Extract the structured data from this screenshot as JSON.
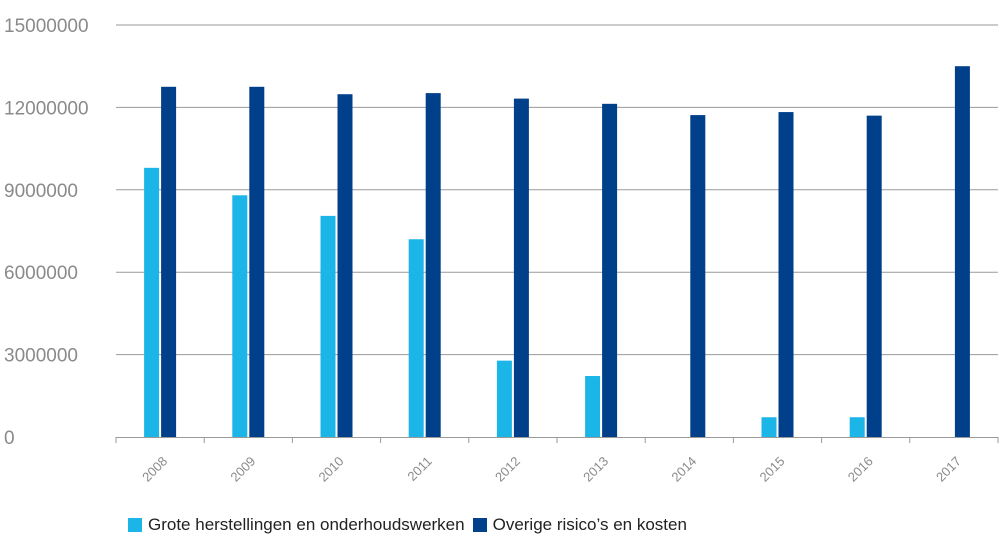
{
  "chart_data": {
    "type": "bar",
    "categories": [
      "2008",
      "2009",
      "2010",
      "2011",
      "2012",
      "2013",
      "2014",
      "2015",
      "2016",
      "2017"
    ],
    "series": [
      {
        "name": "Grote herstellingen en onderhoudswerken",
        "color": "#1cb5e8",
        "values": [
          9800000,
          8800000,
          8050000,
          7200000,
          2780000,
          2220000,
          0,
          720000,
          720000,
          0
        ]
      },
      {
        "name": "Overige risico’s en kosten",
        "color": "#003f8a",
        "values": [
          12750000,
          12750000,
          12480000,
          12520000,
          12320000,
          12130000,
          11720000,
          11830000,
          11700000,
          13500000
        ]
      }
    ],
    "yticks": [
      "0",
      "3000000",
      "6000000",
      "9000000",
      "12000000",
      "15000000"
    ],
    "ylim": [
      0,
      15000000
    ],
    "grid": true,
    "legend": "bottom",
    "title": "",
    "xlabel": "",
    "ylabel": ""
  }
}
